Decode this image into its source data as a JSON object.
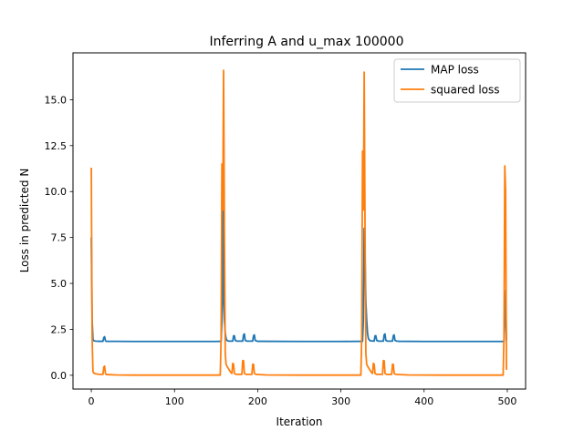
{
  "chart_data": {
    "type": "line",
    "title": "Inferring A and u_max 100000",
    "xlabel": "Iteration",
    "ylabel": "Loss in predicted N",
    "xlim": [
      -22,
      522
    ],
    "ylim": [
      -0.75,
      17.55
    ],
    "xticks": [
      0,
      100,
      200,
      300,
      400,
      500
    ],
    "xtick_labels": [
      "0",
      "100",
      "200",
      "300",
      "400",
      "500"
    ],
    "yticks": [
      0,
      2.5,
      5,
      7.5,
      10,
      12.5,
      15
    ],
    "ytick_labels": [
      "0.0",
      "2.5",
      "5.0",
      "7.5",
      "10.0",
      "12.5",
      "15.0"
    ],
    "grid": false,
    "legend_position": "upper-right",
    "series": [
      {
        "name": "MAP loss",
        "color": "#1f77b4",
        "points": [
          [
            0,
            7.5
          ],
          [
            1,
            3.0
          ],
          [
            2,
            1.95
          ],
          [
            3,
            1.88
          ],
          [
            5,
            1.86
          ],
          [
            10,
            1.85
          ],
          [
            14,
            1.85
          ],
          [
            15,
            2.05
          ],
          [
            16,
            2.1
          ],
          [
            17,
            1.88
          ],
          [
            18,
            1.85
          ],
          [
            50,
            1.84
          ],
          [
            100,
            1.84
          ],
          [
            150,
            1.84
          ],
          [
            156,
            1.85
          ],
          [
            157,
            3.0
          ],
          [
            158,
            9.5
          ],
          [
            159,
            4.0
          ],
          [
            160,
            3.0
          ],
          [
            161,
            2.3
          ],
          [
            162,
            2.0
          ],
          [
            163,
            1.9
          ],
          [
            165,
            1.86
          ],
          [
            170,
            1.86
          ],
          [
            171,
            2.15
          ],
          [
            172,
            2.15
          ],
          [
            173,
            1.9
          ],
          [
            175,
            1.86
          ],
          [
            182,
            1.86
          ],
          [
            183,
            2.2
          ],
          [
            184,
            2.25
          ],
          [
            185,
            1.9
          ],
          [
            187,
            1.86
          ],
          [
            194,
            1.86
          ],
          [
            195,
            2.15
          ],
          [
            196,
            2.2
          ],
          [
            197,
            1.9
          ],
          [
            199,
            1.86
          ],
          [
            200,
            1.85
          ],
          [
            250,
            1.84
          ],
          [
            300,
            1.84
          ],
          [
            326,
            1.85
          ],
          [
            327,
            3.0
          ],
          [
            328,
            8.0
          ],
          [
            329,
            6.5
          ],
          [
            330,
            4.0
          ],
          [
            331,
            3.0
          ],
          [
            332,
            2.3
          ],
          [
            333,
            2.0
          ],
          [
            335,
            1.88
          ],
          [
            340,
            1.86
          ],
          [
            341,
            2.15
          ],
          [
            342,
            2.15
          ],
          [
            343,
            1.9
          ],
          [
            345,
            1.86
          ],
          [
            351,
            1.86
          ],
          [
            352,
            2.2
          ],
          [
            353,
            2.25
          ],
          [
            354,
            1.9
          ],
          [
            356,
            1.86
          ],
          [
            362,
            1.86
          ],
          [
            363,
            2.15
          ],
          [
            364,
            2.2
          ],
          [
            365,
            1.9
          ],
          [
            367,
            1.86
          ],
          [
            370,
            1.85
          ],
          [
            400,
            1.84
          ],
          [
            450,
            1.84
          ],
          [
            496,
            1.84
          ],
          [
            497,
            3.0
          ],
          [
            498,
            4.6
          ],
          [
            499,
            1.9
          ]
        ]
      },
      {
        "name": "squared loss",
        "color": "#ff7f0e",
        "points": [
          [
            0,
            11.3
          ],
          [
            1,
            2.0
          ],
          [
            2,
            0.2
          ],
          [
            3,
            0.12
          ],
          [
            5,
            0.08
          ],
          [
            10,
            0.05
          ],
          [
            14,
            0.05
          ],
          [
            15,
            0.45
          ],
          [
            16,
            0.5
          ],
          [
            17,
            0.1
          ],
          [
            18,
            0.04
          ],
          [
            30,
            0.02
          ],
          [
            50,
            0.01
          ],
          [
            100,
            0.01
          ],
          [
            150,
            0.01
          ],
          [
            155,
            0.01
          ],
          [
            156,
            2.0
          ],
          [
            157,
            11.5
          ],
          [
            158,
            9.0
          ],
          [
            159,
            16.6
          ],
          [
            160,
            8.0
          ],
          [
            161,
            1.2
          ],
          [
            162,
            0.6
          ],
          [
            163,
            0.5
          ],
          [
            165,
            0.35
          ],
          [
            167,
            0.2
          ],
          [
            169,
            0.1
          ],
          [
            170,
            0.65
          ],
          [
            171,
            0.6
          ],
          [
            172,
            0.1
          ],
          [
            174,
            0.05
          ],
          [
            181,
            0.05
          ],
          [
            182,
            0.8
          ],
          [
            183,
            0.8
          ],
          [
            184,
            0.1
          ],
          [
            186,
            0.05
          ],
          [
            193,
            0.05
          ],
          [
            194,
            0.6
          ],
          [
            195,
            0.6
          ],
          [
            196,
            0.1
          ],
          [
            198,
            0.05
          ],
          [
            210,
            0.02
          ],
          [
            250,
            0.01
          ],
          [
            300,
            0.01
          ],
          [
            324,
            0.01
          ],
          [
            325,
            2.0
          ],
          [
            326,
            12.2
          ],
          [
            327,
            9.0
          ],
          [
            328,
            16.5
          ],
          [
            329,
            8.0
          ],
          [
            330,
            1.2
          ],
          [
            331,
            0.6
          ],
          [
            332,
            0.5
          ],
          [
            334,
            0.35
          ],
          [
            336,
            0.2
          ],
          [
            338,
            0.1
          ],
          [
            339,
            0.65
          ],
          [
            340,
            0.6
          ],
          [
            341,
            0.1
          ],
          [
            343,
            0.05
          ],
          [
            350,
            0.05
          ],
          [
            351,
            0.8
          ],
          [
            352,
            0.8
          ],
          [
            353,
            0.1
          ],
          [
            355,
            0.05
          ],
          [
            361,
            0.05
          ],
          [
            362,
            0.6
          ],
          [
            363,
            0.6
          ],
          [
            364,
            0.1
          ],
          [
            366,
            0.05
          ],
          [
            380,
            0.02
          ],
          [
            420,
            0.01
          ],
          [
            495,
            0.01
          ],
          [
            496,
            2.0
          ],
          [
            497,
            11.4
          ],
          [
            498,
            10.0
          ],
          [
            499,
            0.3
          ]
        ]
      }
    ]
  }
}
